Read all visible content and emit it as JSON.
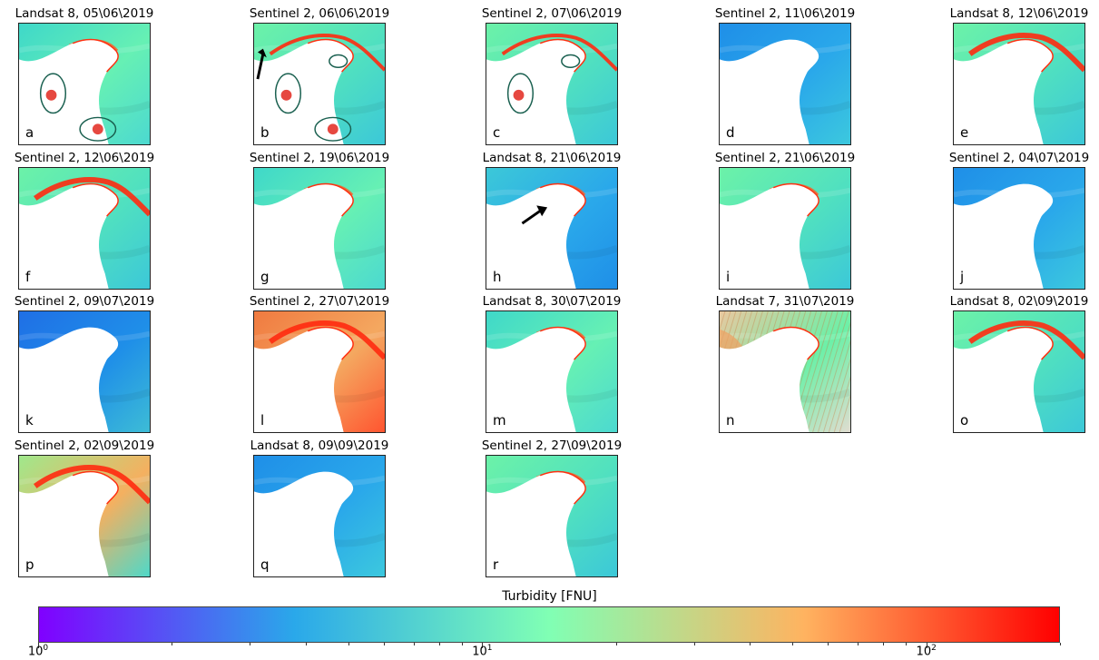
{
  "panels": [
    {
      "title": "Landsat 8, 05\\06\\2019",
      "letter": "a",
      "palette": "cyan-green",
      "plume": "low",
      "markers": "ellipses-2"
    },
    {
      "title": "Sentinel 2, 06\\06\\2019",
      "letter": "b",
      "palette": "green-cyan",
      "plume": "red-north",
      "markers": "ellipses-3-arrow"
    },
    {
      "title": "Sentinel 2, 07\\06\\2019",
      "letter": "c",
      "palette": "green-cyan",
      "plume": "red-north",
      "markers": "ellipses-2"
    },
    {
      "title": "Sentinel 2, 11\\06\\2019",
      "letter": "d",
      "palette": "blue",
      "plume": "none",
      "markers": "none"
    },
    {
      "title": "Landsat 8, 12\\06\\2019",
      "letter": "e",
      "palette": "green-cyan",
      "plume": "red-arc",
      "markers": "none"
    },
    {
      "title": "Sentinel 2, 12\\06\\2019",
      "letter": "f",
      "palette": "green-cyan",
      "plume": "red-arc",
      "markers": "none"
    },
    {
      "title": "Sentinel 2, 19\\06\\2019",
      "letter": "g",
      "palette": "cyan-green",
      "plume": "low",
      "markers": "none"
    },
    {
      "title": "Landsat 8, 21\\06\\2019",
      "letter": "h",
      "palette": "cyan-blue",
      "plume": "low",
      "markers": "arrow"
    },
    {
      "title": "Sentinel 2, 21\\06\\2019",
      "letter": "i",
      "palette": "green-cyan",
      "plume": "low",
      "markers": "none"
    },
    {
      "title": "Sentinel 2, 04\\07\\2019",
      "letter": "j",
      "palette": "blue",
      "plume": "none",
      "markers": "none"
    },
    {
      "title": "Sentinel 2, 09\\07\\2019",
      "letter": "k",
      "palette": "deep-blue",
      "plume": "none",
      "markers": "none"
    },
    {
      "title": "Sentinel 2, 27\\07\\2019",
      "letter": "l",
      "palette": "orange-red",
      "plume": "full-red",
      "markers": "none"
    },
    {
      "title": "Landsat 8, 30\\07\\2019",
      "letter": "m",
      "palette": "cyan-green",
      "plume": "low",
      "markers": "none"
    },
    {
      "title": "Landsat 7, 31\\07\\2019",
      "letter": "n",
      "palette": "orange-stripes",
      "plume": "orange",
      "markers": "none"
    },
    {
      "title": "Landsat 8, 02\\09\\2019",
      "letter": "o",
      "palette": "green-cyan",
      "plume": "red-arc",
      "markers": "none"
    },
    {
      "title": "Sentinel 2, 02\\09\\2019",
      "letter": "p",
      "palette": "green-orange",
      "plume": "full-red",
      "markers": "none"
    },
    {
      "title": "Landsat 8, 09\\09\\2019",
      "letter": "q",
      "palette": "blue",
      "plume": "none",
      "markers": "none"
    },
    {
      "title": "Sentinel 2, 27\\09\\2019",
      "letter": "r",
      "palette": "green-cyan",
      "plume": "low",
      "markers": "none"
    }
  ],
  "colorbar": {
    "title": "Turbidity [FNU]",
    "scale": "log",
    "range": [
      1,
      200
    ],
    "colors": [
      "#8000ff",
      "#2aa8ea",
      "#80ffb4",
      "#ffb360",
      "#ff0000"
    ],
    "major_ticks": [
      {
        "value": 1,
        "base": "10",
        "exp": "0"
      },
      {
        "value": 10,
        "base": "10",
        "exp": "1"
      },
      {
        "value": 100,
        "base": "10",
        "exp": "2"
      }
    ]
  }
}
